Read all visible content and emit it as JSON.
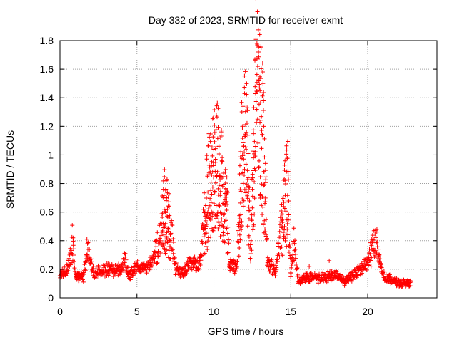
{
  "chart_data": {
    "type": "scatter",
    "title": "Day 332 of 2023, SRMTID for receiver exmt",
    "xlabel": "GPS time / hours",
    "ylabel": "SRMTID / TECUs",
    "xlim": [
      0,
      24.5
    ],
    "ylim": [
      0,
      1.8
    ],
    "xticks": [
      0,
      5,
      10,
      15,
      20
    ],
    "xtick_labels": [
      "0",
      "5",
      "10",
      "15",
      "20"
    ],
    "yticks": [
      0,
      0.2,
      0.4,
      0.6,
      0.8,
      1.0,
      1.2,
      1.4,
      1.6,
      1.8
    ],
    "ytick_labels": [
      "0",
      "0.2",
      "0.4",
      "0.6",
      "0.8",
      "1",
      "1.2",
      "1.4",
      "1.6",
      "1.8"
    ],
    "grid": true,
    "marker": "+",
    "color": "#ff0000",
    "profile_points": [
      [
        0.0,
        0.15
      ],
      [
        0.4,
        0.19
      ],
      [
        0.7,
        0.3
      ],
      [
        0.8,
        0.4
      ],
      [
        1.0,
        0.15
      ],
      [
        1.5,
        0.14
      ],
      [
        1.8,
        0.33
      ],
      [
        2.2,
        0.17
      ],
      [
        3.0,
        0.2
      ],
      [
        4.0,
        0.19
      ],
      [
        4.2,
        0.28
      ],
      [
        4.5,
        0.15
      ],
      [
        5.0,
        0.22
      ],
      [
        5.5,
        0.2
      ],
      [
        6.0,
        0.25
      ],
      [
        6.5,
        0.4
      ],
      [
        6.8,
        0.62
      ],
      [
        7.2,
        0.5
      ],
      [
        7.5,
        0.2
      ],
      [
        8.0,
        0.18
      ],
      [
        8.5,
        0.25
      ],
      [
        9.0,
        0.22
      ],
      [
        9.5,
        0.65
      ],
      [
        9.8,
        0.85
      ],
      [
        10.2,
        0.95
      ],
      [
        10.5,
        0.78
      ],
      [
        10.8,
        0.7
      ],
      [
        11.0,
        0.25
      ],
      [
        11.5,
        0.2
      ],
      [
        11.8,
        0.95
      ],
      [
        12.1,
        1.1
      ],
      [
        12.4,
        0.3
      ],
      [
        12.8,
        1.65
      ],
      [
        13.2,
        1.05
      ],
      [
        13.5,
        0.25
      ],
      [
        14.0,
        0.18
      ],
      [
        14.5,
        0.6
      ],
      [
        14.8,
        0.75
      ],
      [
        15.0,
        0.15
      ],
      [
        15.2,
        0.4
      ],
      [
        15.5,
        0.1
      ],
      [
        16.0,
        0.15
      ],
      [
        17.0,
        0.14
      ],
      [
        18.0,
        0.16
      ],
      [
        18.5,
        0.12
      ],
      [
        19.0,
        0.15
      ],
      [
        20.0,
        0.25
      ],
      [
        20.5,
        0.4
      ],
      [
        21.0,
        0.15
      ],
      [
        22.0,
        0.1
      ],
      [
        22.8,
        0.1
      ]
    ],
    "highlight_points": [
      [
        0.85,
        0.42
      ],
      [
        1.75,
        0.41
      ],
      [
        6.9,
        0.68
      ],
      [
        10.1,
        0.97
      ],
      [
        11.9,
        1.34
      ],
      [
        12.2,
        1.31
      ],
      [
        12.8,
        1.78
      ],
      [
        12.9,
        1.72
      ],
      [
        12.85,
        1.62
      ],
      [
        13.0,
        1.45
      ],
      [
        13.25,
        1.2
      ],
      [
        14.5,
        0.95
      ],
      [
        20.6,
        0.48
      ],
      [
        16.2,
        0.22
      ],
      [
        17.5,
        0.26
      ]
    ]
  }
}
